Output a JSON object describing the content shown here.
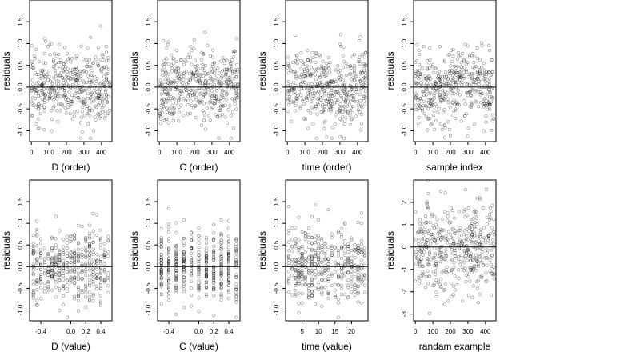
{
  "chart_data": [
    {
      "type": "scatter",
      "xlabel": "D (order)",
      "ylabel": "residuals",
      "xticks": [
        0,
        100,
        200,
        300,
        400
      ],
      "xtick_labels": [
        "0",
        "100",
        "200",
        "300",
        "400"
      ],
      "yticks": [
        -1.0,
        -0.5,
        0.0,
        0.5,
        1.0,
        1.5
      ],
      "ytick_labels": [
        "-1.0",
        "-0.5",
        "0.0",
        "0.5",
        "1.0",
        "1.5"
      ],
      "xlim": [
        -10,
        460
      ],
      "ylim": [
        -1.25,
        2.0
      ],
      "hline": 0,
      "pattern": "order",
      "n_points": 450,
      "seed": 11,
      "x_range": [
        0,
        450
      ]
    },
    {
      "type": "scatter",
      "xlabel": "C (order)",
      "ylabel": "residuals",
      "xticks": [
        0,
        100,
        200,
        300,
        400
      ],
      "xtick_labels": [
        "0",
        "100",
        "200",
        "300",
        "400"
      ],
      "yticks": [
        -1.0,
        -0.5,
        0.0,
        0.5,
        1.0,
        1.5
      ],
      "ytick_labels": [
        "-1.0",
        "-0.5",
        "0.0",
        "0.5",
        "1.0",
        "1.5"
      ],
      "xlim": [
        -10,
        460
      ],
      "ylim": [
        -1.25,
        2.0
      ],
      "hline": 0,
      "pattern": "order",
      "n_points": 450,
      "seed": 23,
      "x_range": [
        0,
        450
      ]
    },
    {
      "type": "scatter",
      "xlabel": "time (order)",
      "ylabel": "residuals",
      "xticks": [
        0,
        100,
        200,
        300,
        400
      ],
      "xtick_labels": [
        "0",
        "100",
        "200",
        "300",
        "400"
      ],
      "yticks": [
        -1.0,
        -0.5,
        0.0,
        0.5,
        1.0,
        1.5
      ],
      "ytick_labels": [
        "-1.0",
        "-0.5",
        "0.0",
        "0.5",
        "1.0",
        "1.5"
      ],
      "xlim": [
        -10,
        460
      ],
      "ylim": [
        -1.25,
        2.0
      ],
      "hline": 0,
      "pattern": "order",
      "n_points": 450,
      "seed": 37,
      "x_range": [
        0,
        450
      ]
    },
    {
      "type": "scatter",
      "xlabel": "sample index",
      "ylabel": "residuals",
      "xticks": [
        0,
        100,
        200,
        300,
        400
      ],
      "xtick_labels": [
        "0",
        "100",
        "200",
        "300",
        "400"
      ],
      "yticks": [
        -1.0,
        -0.5,
        0.0,
        0.5,
        1.0,
        1.5
      ],
      "ytick_labels": [
        "-1.0",
        "-0.5",
        "0.0",
        "0.5",
        "1.0",
        "1.5"
      ],
      "xlim": [
        -10,
        460
      ],
      "ylim": [
        -1.25,
        2.0
      ],
      "hline": 0,
      "pattern": "order",
      "n_points": 450,
      "seed": 53,
      "x_range": [
        0,
        450
      ]
    },
    {
      "type": "scatter",
      "xlabel": "D (value)",
      "ylabel": "residuals",
      "xticks": [
        -0.4,
        0.0,
        0.2,
        0.4
      ],
      "xtick_labels": [
        "-0.4",
        "0.0",
        "0.2",
        "0.4"
      ],
      "yticks": [
        -1.0,
        -0.5,
        0.0,
        0.5,
        1.0,
        1.5
      ],
      "ytick_labels": [
        "-1.0",
        "-0.5",
        "0.0",
        "0.5",
        "1.0",
        "1.5"
      ],
      "xlim": [
        -0.55,
        0.55
      ],
      "ylim": [
        -1.25,
        2.0
      ],
      "hline": 0,
      "pattern": "discrete",
      "n_points": 450,
      "seed": 71,
      "levels": [
        -0.5,
        -0.45,
        -0.4,
        -0.35,
        -0.3,
        -0.25,
        -0.2,
        -0.15,
        -0.1,
        -0.05,
        0.0,
        0.05,
        0.1,
        0.15,
        0.2,
        0.25,
        0.3,
        0.35,
        0.4,
        0.45,
        0.5
      ]
    },
    {
      "type": "scatter",
      "xlabel": "C (value)",
      "ylabel": "residuals",
      "xticks": [
        -0.4,
        0.0,
        0.2,
        0.4
      ],
      "xtick_labels": [
        "-0.4",
        "0.0",
        "0.2",
        "0.4"
      ],
      "yticks": [
        -1.0,
        -0.5,
        0.0,
        0.5,
        1.0,
        1.5
      ],
      "ytick_labels": [
        "-1.0",
        "-0.5",
        "0.0",
        "0.5",
        "1.0",
        "1.5"
      ],
      "xlim": [
        -0.55,
        0.55
      ],
      "ylim": [
        -1.25,
        2.0
      ],
      "hline": 0,
      "pattern": "discrete",
      "n_points": 450,
      "seed": 89,
      "levels": [
        -0.5,
        -0.4,
        -0.3,
        -0.2,
        -0.1,
        0.0,
        0.1,
        0.2,
        0.3,
        0.4,
        0.5
      ]
    },
    {
      "type": "scatter",
      "xlabel": "time (value)",
      "ylabel": "residuals",
      "xticks": [
        5,
        10,
        15,
        20
      ],
      "xtick_labels": [
        "5",
        "10",
        "15",
        "20"
      ],
      "yticks": [
        -1.0,
        -0.5,
        0.0,
        0.5,
        1.0,
        1.5
      ],
      "ytick_labels": [
        "-1.0",
        "-0.5",
        "0.0",
        "0.5",
        "1.0",
        "1.5"
      ],
      "xlim": [
        0,
        25
      ],
      "ylim": [
        -1.25,
        2.0
      ],
      "hline": 0,
      "pattern": "discrete",
      "n_points": 450,
      "seed": 97,
      "levels": [
        1,
        2,
        3,
        4,
        5,
        6,
        7,
        8,
        9,
        10,
        11,
        12,
        13,
        14,
        15,
        16,
        17,
        18,
        19,
        20,
        21,
        22,
        23,
        24
      ]
    },
    {
      "type": "scatter",
      "xlabel": "randam example",
      "ylabel": "residuals",
      "xticks": [
        0,
        100,
        200,
        300,
        400
      ],
      "xtick_labels": [
        "0",
        "100",
        "200",
        "300",
        "400"
      ],
      "yticks": [
        -3,
        -2,
        -1,
        0,
        1,
        2
      ],
      "ytick_labels": [
        "-3",
        "-2",
        "-1",
        "0",
        "1",
        "2"
      ],
      "xlim": [
        -10,
        460
      ],
      "ylim": [
        -3.3,
        3.0
      ],
      "hline": 0,
      "pattern": "normal",
      "n_points": 450,
      "seed": 131,
      "x_range": [
        0,
        450
      ]
    }
  ]
}
